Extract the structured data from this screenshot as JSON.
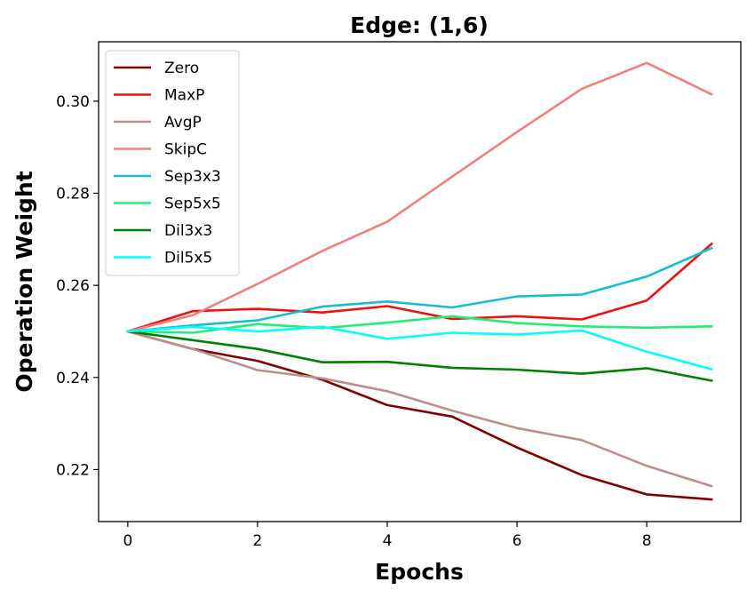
{
  "chart_data": {
    "type": "line",
    "title": "Edge: (1,6)",
    "xlabel": "Epochs",
    "ylabel": "Operation Weight",
    "xlim": [
      -0.45,
      9.45
    ],
    "ylim": [
      0.2087,
      0.3129
    ],
    "xticks": [
      0,
      2,
      4,
      6,
      8
    ],
    "xtick_labels": [
      "0",
      "2",
      "4",
      "6",
      "8"
    ],
    "yticks": [
      0.22,
      0.24,
      0.26,
      0.28,
      0.3
    ],
    "ytick_labels": [
      "0.22",
      "0.24",
      "0.26",
      "0.28",
      "0.30"
    ],
    "grid": false,
    "legend_position": "top-left",
    "x": [
      0,
      1,
      2,
      3,
      4,
      5,
      6,
      7,
      8,
      9
    ],
    "series": [
      {
        "name": "Zero",
        "color": "#800000",
        "values": [
          0.25,
          0.2462,
          0.2436,
          0.2395,
          0.234,
          0.2315,
          0.2248,
          0.2188,
          0.2146,
          0.2135
        ]
      },
      {
        "name": "MaxP",
        "color": "#ee1111",
        "values": [
          0.25,
          0.2544,
          0.2549,
          0.2541,
          0.2555,
          0.2527,
          0.2533,
          0.2526,
          0.2567,
          0.269
        ]
      },
      {
        "name": "AvgP",
        "color": "#bc8f8f",
        "values": [
          0.25,
          0.2462,
          0.2416,
          0.2398,
          0.237,
          0.2328,
          0.229,
          0.2264,
          0.2208,
          0.2164
        ]
      },
      {
        "name": "SkipC",
        "color": "#f08080",
        "values": [
          0.25,
          0.2535,
          0.2603,
          0.2675,
          0.2738,
          0.2836,
          0.2933,
          0.3027,
          0.3083,
          0.3015
        ]
      },
      {
        "name": "Sep3x3",
        "color": "#17becf",
        "values": [
          0.25,
          0.2513,
          0.2524,
          0.2554,
          0.2565,
          0.2552,
          0.2576,
          0.258,
          0.2619,
          0.2681
        ]
      },
      {
        "name": "Sep5x5",
        "color": "#22ee77",
        "values": [
          0.25,
          0.2497,
          0.2516,
          0.2507,
          0.2519,
          0.2533,
          0.2518,
          0.2511,
          0.2508,
          0.2511
        ]
      },
      {
        "name": "Dil3x3",
        "color": "#008000",
        "values": [
          0.25,
          0.2481,
          0.2462,
          0.2433,
          0.2434,
          0.2421,
          0.2417,
          0.2408,
          0.242,
          0.2393
        ]
      },
      {
        "name": "Dil5x5",
        "color": "#00ffff",
        "values": [
          0.25,
          0.251,
          0.25,
          0.251,
          0.2484,
          0.2497,
          0.2493,
          0.2502,
          0.2456,
          0.2418
        ]
      }
    ]
  }
}
